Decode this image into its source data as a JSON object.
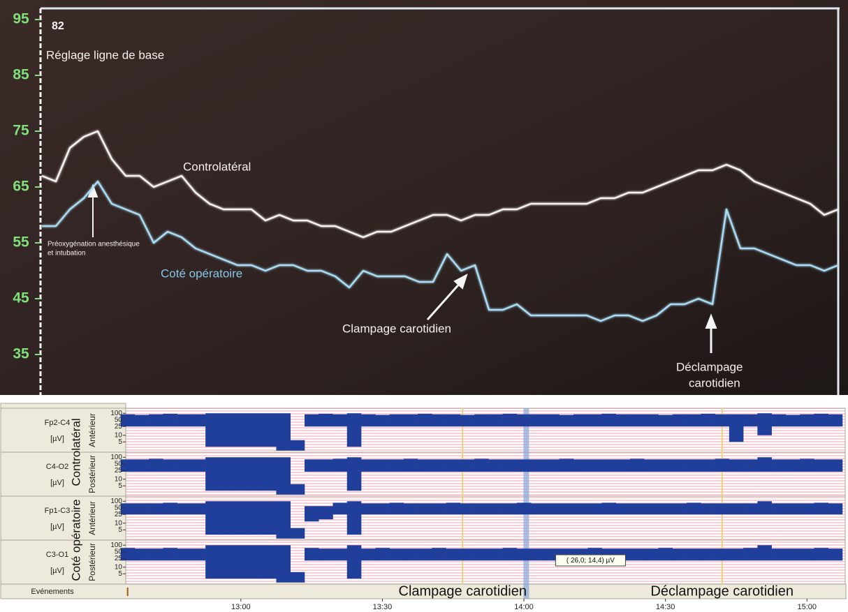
{
  "chart_data": [
    {
      "type": "line",
      "title": "82",
      "ylim": [
        28,
        97
      ],
      "yticks": [
        35,
        45,
        55,
        65,
        75,
        85,
        95
      ],
      "tick_color": "#7fe07a",
      "annotations": [
        "Réglage ligne de base",
        "Préoxygénation anesthésique",
        "et intubation",
        "Clampage carotidien",
        "Déclampage",
        "carotidien"
      ],
      "series": [
        {
          "name": "Controlatéral",
          "color": "#f6f2f2",
          "values": [
            67,
            66,
            72,
            74,
            75,
            70,
            67,
            67,
            65,
            66,
            67,
            64,
            62,
            61,
            61,
            61,
            59,
            60,
            59,
            59,
            58,
            58,
            57,
            56,
            57,
            57,
            58,
            59,
            60,
            60,
            59,
            60,
            60,
            61,
            61,
            62,
            62,
            62,
            62,
            62,
            63,
            63,
            64,
            64,
            65,
            66,
            67,
            68,
            68,
            69,
            68,
            66,
            65,
            64,
            63,
            62,
            60,
            61
          ]
        },
        {
          "name": "Coté opératoire",
          "color": "#a9dcf4",
          "values": [
            58,
            58,
            61,
            63,
            66,
            62,
            61,
            60,
            55,
            57,
            56,
            54,
            53,
            52,
            51,
            51,
            50,
            51,
            51,
            50,
            50,
            49,
            47,
            50,
            49,
            49,
            49,
            48,
            48,
            53,
            50,
            51,
            43,
            43,
            44,
            42,
            42,
            42,
            42,
            42,
            41,
            42,
            42,
            41,
            42,
            44,
            44,
            45,
            44,
            61,
            54,
            54,
            53,
            52,
            51,
            51,
            50,
            51
          ]
        }
      ]
    },
    {
      "type": "eeg",
      "xlim": [
        755.6,
        908.1
      ],
      "xticks": [
        {
          "value": 780,
          "label": "13:00"
        },
        {
          "value": 810,
          "label": "13:30"
        },
        {
          "value": 840,
          "label": "14:00"
        },
        {
          "value": 870,
          "label": "14:30"
        },
        {
          "value": 900,
          "label": "15:00"
        }
      ],
      "ylim": [
        1.7,
        170
      ],
      "yticks": [
        100,
        50,
        25,
        10,
        5
      ],
      "log_scale": true,
      "color": "#1f3f9a",
      "groups": [
        "Controlatéral",
        "Coté opératoire"
      ],
      "time": [
        756,
        759,
        762,
        765,
        768,
        771,
        774,
        777,
        780,
        783,
        786,
        789,
        792,
        795,
        798,
        801,
        804,
        807,
        810,
        813,
        816,
        819,
        822,
        825,
        828,
        831,
        834,
        837,
        840,
        843,
        846,
        849,
        852,
        855,
        858,
        861,
        864,
        867,
        870,
        873,
        876,
        879,
        882,
        885,
        888,
        891,
        894,
        897,
        900,
        903,
        906
      ],
      "channels": [
        {
          "name": "Fp2-C4",
          "unit": "[µV]",
          "region": "Antérieur",
          "high": [
            90,
            85,
            90,
            95,
            90,
            90,
            100,
            100,
            100,
            100,
            100,
            100,
            6,
            90,
            95,
            90,
            100,
            90,
            85,
            90,
            90,
            95,
            90,
            90,
            85,
            90,
            90,
            95,
            90,
            90,
            90,
            85,
            90,
            90,
            95,
            90,
            90,
            90,
            85,
            90,
            90,
            95,
            90,
            90,
            90,
            100,
            90,
            85,
            90,
            95,
            90
          ],
          "low": [
            25,
            25,
            25,
            25,
            25,
            25,
            3,
            3,
            3,
            3,
            3,
            2,
            2,
            25,
            25,
            25,
            3,
            25,
            25,
            25,
            25,
            25,
            25,
            25,
            25,
            25,
            25,
            25,
            25,
            25,
            25,
            25,
            25,
            25,
            25,
            25,
            25,
            25,
            25,
            25,
            25,
            25,
            25,
            5,
            25,
            10,
            25,
            25,
            25,
            25,
            25
          ]
        },
        {
          "name": "C4-O2",
          "unit": "[µV]",
          "region": "Postérieur",
          "high": [
            80,
            80,
            85,
            80,
            80,
            80,
            100,
            100,
            100,
            100,
            100,
            100,
            6,
            80,
            80,
            85,
            100,
            80,
            80,
            80,
            85,
            80,
            80,
            80,
            80,
            85,
            80,
            80,
            80,
            80,
            80,
            85,
            80,
            80,
            80,
            80,
            85,
            80,
            80,
            80,
            80,
            80,
            85,
            80,
            80,
            100,
            80,
            80,
            85,
            80,
            80
          ],
          "low": [
            22,
            22,
            22,
            22,
            22,
            22,
            3,
            3,
            3,
            3,
            3,
            2,
            2,
            22,
            22,
            22,
            3,
            22,
            22,
            22,
            22,
            22,
            22,
            22,
            22,
            22,
            22,
            22,
            22,
            22,
            22,
            22,
            22,
            22,
            22,
            22,
            22,
            22,
            22,
            22,
            22,
            22,
            22,
            22,
            22,
            22,
            22,
            22,
            22,
            22,
            22
          ]
        },
        {
          "name": "Fp1-C3",
          "unit": "[µV]",
          "region": "Antérieur",
          "high": [
            80,
            80,
            80,
            85,
            80,
            80,
            100,
            100,
            100,
            100,
            100,
            100,
            6,
            60,
            60,
            85,
            100,
            80,
            80,
            85,
            80,
            80,
            80,
            85,
            80,
            80,
            80,
            80,
            85,
            80,
            80,
            80,
            80,
            80,
            85,
            80,
            80,
            80,
            80,
            80,
            85,
            80,
            80,
            80,
            80,
            100,
            80,
            80,
            80,
            85,
            80
          ],
          "low": [
            25,
            25,
            25,
            25,
            25,
            25,
            3,
            3,
            3,
            3,
            3,
            2,
            2,
            12,
            15,
            25,
            3,
            25,
            25,
            25,
            25,
            25,
            25,
            25,
            25,
            25,
            25,
            25,
            25,
            25,
            25,
            25,
            25,
            25,
            25,
            25,
            25,
            25,
            25,
            25,
            25,
            25,
            25,
            25,
            25,
            25,
            25,
            25,
            25,
            25,
            25
          ]
        },
        {
          "name": "C3-O1",
          "unit": "[µV]",
          "region": "Postérieur",
          "high": [
            75,
            70,
            70,
            75,
            70,
            70,
            100,
            100,
            100,
            100,
            100,
            100,
            6,
            75,
            70,
            70,
            100,
            70,
            75,
            70,
            70,
            70,
            75,
            70,
            70,
            70,
            70,
            75,
            70,
            70,
            70,
            70,
            70,
            75,
            70,
            70,
            70,
            70,
            75,
            70,
            70,
            70,
            70,
            70,
            75,
            100,
            70,
            70,
            70,
            75,
            70
          ],
          "low": [
            20,
            20,
            20,
            20,
            20,
            20,
            3,
            3,
            3,
            3,
            3,
            2,
            2,
            20,
            20,
            20,
            3,
            20,
            20,
            20,
            20,
            20,
            20,
            20,
            20,
            20,
            20,
            20,
            20,
            20,
            20,
            20,
            20,
            20,
            20,
            20,
            20,
            20,
            20,
            20,
            20,
            20,
            20,
            20,
            20,
            20,
            20,
            20,
            20,
            20,
            20
          ]
        }
      ],
      "events_label": "Evénements",
      "event_color": "#e9d27a",
      "event_ticks": [
        756
      ],
      "events": [
        {
          "time": 827,
          "label": "Clampage carotidien"
        },
        {
          "time": 882,
          "label": "Déclampage carotidien"
        }
      ],
      "cursor": {
        "time": 840.5,
        "color": "#86a6dc",
        "label": "( 26,0;  14,4) µV"
      }
    }
  ]
}
